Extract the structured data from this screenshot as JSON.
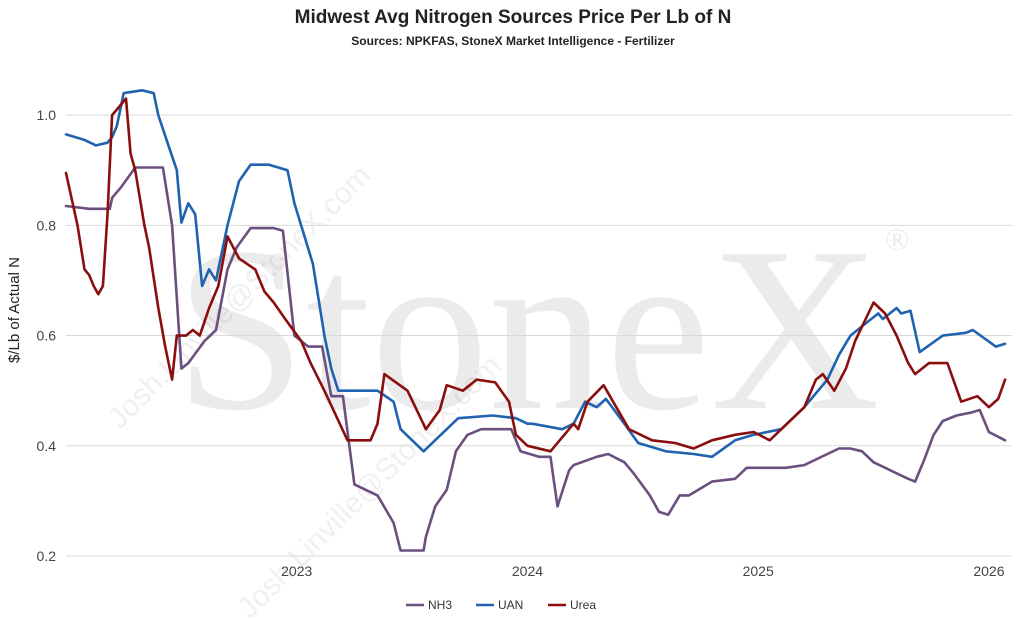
{
  "chart_data": {
    "type": "line",
    "title": "Midwest Avg Nitrogen Sources Price Per Lb of N",
    "subtitle": "Sources: NPKFAS, StoneX Market Intelligence - Fertilizer",
    "ylabel": "$/Lb of Actual N",
    "xlabel": "",
    "ylim": [
      0.2,
      1.1
    ],
    "yticks": [
      0.2,
      0.4,
      0.6,
      0.8,
      1.0
    ],
    "ytick_labels": [
      "0.2",
      "0.4",
      "0.6",
      "0.8",
      "1.0"
    ],
    "xlim": [
      2022.0,
      2026.1
    ],
    "xticks": [
      2023,
      2024,
      2025,
      2026
    ],
    "xtick_labels": [
      "2023",
      "2024",
      "2025",
      "2026"
    ],
    "grid": "horizontal",
    "legend_position": "bottom-center",
    "watermark": "StoneX®",
    "watermark_diagonal": "Josh.Linville@StoneX.com",
    "series": [
      {
        "name": "NH3",
        "color": "#6b4f7f",
        "x": [
          2022.0,
          2022.1,
          2022.19,
          2022.2,
          2022.24,
          2022.3,
          2022.35,
          2022.42,
          2022.46,
          2022.5,
          2022.53,
          2022.6,
          2022.65,
          2022.7,
          2022.74,
          2022.8,
          2022.9,
          2022.94,
          2022.99,
          2023.05,
          2023.11,
          2023.15,
          2023.2,
          2023.25,
          2023.35,
          2023.42,
          2023.45,
          2023.55,
          2023.56,
          2023.6,
          2023.65,
          2023.69,
          2023.74,
          2023.8,
          2023.93,
          2023.97,
          2024.05,
          2024.1,
          2024.11,
          2024.13,
          2024.18,
          2024.2,
          2024.3,
          2024.35,
          2024.42,
          2024.46,
          2024.53,
          2024.57,
          2024.61,
          2024.66,
          2024.7,
          2024.8,
          2024.9,
          2024.95,
          2025.05,
          2025.12,
          2025.2,
          2025.3,
          2025.35,
          2025.4,
          2025.45,
          2025.5,
          2025.65,
          2025.68,
          2025.72,
          2025.76,
          2025.8,
          2025.86,
          2025.92,
          2025.96,
          2026.0,
          2026.07
        ],
        "values": [
          0.835,
          0.83,
          0.83,
          0.85,
          0.87,
          0.905,
          0.905,
          0.905,
          0.8,
          0.54,
          0.55,
          0.59,
          0.61,
          0.72,
          0.76,
          0.795,
          0.795,
          0.79,
          0.6,
          0.58,
          0.58,
          0.49,
          0.49,
          0.33,
          0.31,
          0.26,
          0.21,
          0.21,
          0.235,
          0.29,
          0.32,
          0.39,
          0.42,
          0.43,
          0.43,
          0.39,
          0.38,
          0.38,
          0.35,
          0.29,
          0.355,
          0.365,
          0.38,
          0.385,
          0.37,
          0.35,
          0.31,
          0.28,
          0.275,
          0.31,
          0.31,
          0.335,
          0.34,
          0.36,
          0.36,
          0.36,
          0.365,
          0.385,
          0.395,
          0.395,
          0.39,
          0.37,
          0.34,
          0.335,
          0.375,
          0.42,
          0.445,
          0.455,
          0.46,
          0.465,
          0.425,
          0.41
        ]
      },
      {
        "name": "UAN",
        "color": "#1f63b0",
        "x": [
          2022.0,
          2022.08,
          2022.13,
          2022.18,
          2022.2,
          2022.22,
          2022.25,
          2022.33,
          2022.38,
          2022.4,
          2022.44,
          2022.48,
          2022.5,
          2022.53,
          2022.56,
          2022.59,
          2022.62,
          2022.65,
          2022.7,
          2022.75,
          2022.8,
          2022.88,
          2022.96,
          2022.99,
          2023.07,
          2023.12,
          2023.15,
          2023.18,
          2023.28,
          2023.35,
          2023.42,
          2023.45,
          2023.5,
          2023.55,
          2023.7,
          2023.85,
          2023.95,
          2024.0,
          2024.02,
          2024.15,
          2024.2,
          2024.25,
          2024.3,
          2024.34,
          2024.42,
          2024.48,
          2024.6,
          2024.72,
          2024.8,
          2024.9,
          2024.98,
          2025.1,
          2025.15,
          2025.2,
          2025.3,
          2025.35,
          2025.4,
          2025.46,
          2025.52,
          2025.54,
          2025.6,
          2025.62,
          2025.66,
          2025.7,
          2025.8,
          2025.9,
          2025.93,
          2026.03,
          2026.07
        ],
        "values": [
          0.965,
          0.955,
          0.945,
          0.95,
          0.96,
          0.98,
          1.04,
          1.045,
          1.04,
          1.0,
          0.95,
          0.9,
          0.805,
          0.84,
          0.82,
          0.69,
          0.72,
          0.7,
          0.8,
          0.88,
          0.91,
          0.91,
          0.9,
          0.84,
          0.73,
          0.6,
          0.54,
          0.5,
          0.5,
          0.5,
          0.48,
          0.43,
          0.41,
          0.39,
          0.45,
          0.455,
          0.45,
          0.44,
          0.44,
          0.43,
          0.44,
          0.48,
          0.47,
          0.485,
          0.44,
          0.405,
          0.39,
          0.385,
          0.38,
          0.41,
          0.42,
          0.43,
          0.45,
          0.47,
          0.52,
          0.565,
          0.6,
          0.62,
          0.64,
          0.63,
          0.65,
          0.64,
          0.645,
          0.57,
          0.6,
          0.605,
          0.61,
          0.58,
          0.585
        ]
      },
      {
        "name": "Urea",
        "color": "#8b0e0e",
        "x": [
          2022.0,
          2022.05,
          2022.08,
          2022.1,
          2022.12,
          2022.14,
          2022.16,
          2022.18,
          2022.2,
          2022.22,
          2022.26,
          2022.28,
          2022.3,
          2022.34,
          2022.36,
          2022.4,
          2022.43,
          2022.46,
          2022.48,
          2022.52,
          2022.55,
          2022.58,
          2022.62,
          2022.66,
          2022.7,
          2022.75,
          2022.82,
          2022.86,
          2022.9,
          2022.95,
          2023.02,
          2023.06,
          2023.12,
          2023.22,
          2023.32,
          2023.35,
          2023.38,
          2023.48,
          2023.56,
          2023.62,
          2023.65,
          2023.72,
          2023.78,
          2023.86,
          2023.92,
          2023.95,
          2024.0,
          2024.1,
          2024.2,
          2024.22,
          2024.26,
          2024.33,
          2024.44,
          2024.54,
          2024.64,
          2024.72,
          2024.8,
          2024.9,
          2024.98,
          2025.05,
          2025.1,
          2025.15,
          2025.2,
          2025.25,
          2025.28,
          2025.33,
          2025.38,
          2025.42,
          2025.5,
          2025.55,
          2025.6,
          2025.65,
          2025.68,
          2025.74,
          2025.82,
          2025.88,
          2025.95,
          2026.0,
          2026.04,
          2026.07
        ],
        "values": [
          0.895,
          0.8,
          0.72,
          0.71,
          0.69,
          0.675,
          0.69,
          0.82,
          1.0,
          1.01,
          1.03,
          0.93,
          0.9,
          0.8,
          0.76,
          0.65,
          0.58,
          0.52,
          0.6,
          0.6,
          0.61,
          0.6,
          0.65,
          0.69,
          0.78,
          0.74,
          0.72,
          0.68,
          0.66,
          0.63,
          0.59,
          0.55,
          0.5,
          0.41,
          0.41,
          0.44,
          0.53,
          0.5,
          0.43,
          0.465,
          0.51,
          0.5,
          0.52,
          0.515,
          0.48,
          0.42,
          0.4,
          0.39,
          0.44,
          0.43,
          0.48,
          0.51,
          0.43,
          0.41,
          0.405,
          0.395,
          0.41,
          0.42,
          0.425,
          0.41,
          0.43,
          0.45,
          0.47,
          0.52,
          0.53,
          0.5,
          0.54,
          0.59,
          0.66,
          0.64,
          0.6,
          0.55,
          0.53,
          0.55,
          0.55,
          0.48,
          0.49,
          0.47,
          0.485,
          0.52
        ]
      }
    ]
  }
}
